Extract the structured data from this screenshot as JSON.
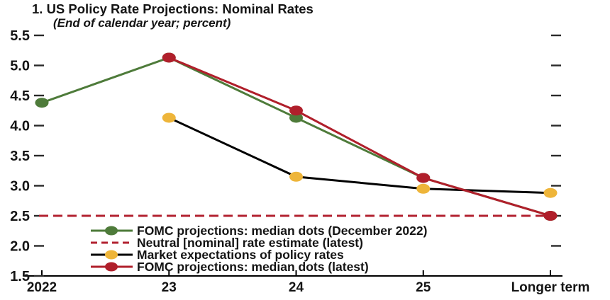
{
  "header": {
    "title": "1. US Policy Rate Projections: Nominal Rates",
    "subtitle": "(End of calendar year; percent)"
  },
  "chart_data": {
    "type": "line",
    "title": "1. US Policy Rate Projections: Nominal Rates",
    "subtitle": "(End of calendar year; percent)",
    "categories": [
      "2022",
      "23",
      "24",
      "25",
      "Longer term"
    ],
    "ylim": [
      1.5,
      5.5
    ],
    "yticks": [
      5.5,
      5.0,
      4.5,
      4.0,
      3.5,
      3.0,
      2.5,
      2.0,
      1.5
    ],
    "grid": false,
    "legend_position": "inside-bottom-left",
    "colors": {
      "fomc_dec2022_green": "#4e7b3a",
      "neutral_rate_red": "#b22230",
      "market_line_black": "#000000",
      "market_dot_yellow": "#eeb53a",
      "fomc_latest_red": "#b01f2b",
      "axis_black": "#000000"
    },
    "series": [
      {
        "name": "FOMC projections: median dots (December 2022)",
        "style": "line-dot",
        "line_color": "#4e7b3a",
        "dot_color": "#4e7b3a",
        "values": [
          4.38,
          5.13,
          4.13,
          3.13,
          2.5
        ]
      },
      {
        "name": "Neutral [nominal] rate estimate (latest)",
        "style": "dashed",
        "line_color": "#b22230",
        "values": [
          2.5,
          2.5,
          2.5,
          2.5,
          2.5
        ]
      },
      {
        "name": "Market expectations of policy rates",
        "style": "line-dot",
        "line_color": "#000000",
        "dot_color": "#eeb53a",
        "values": [
          null,
          4.13,
          3.15,
          2.95,
          2.88
        ]
      },
      {
        "name": "FOMC projections: median dots (latest)",
        "style": "line-dot",
        "line_color": "#b01f2b",
        "dot_color": "#b01f2b",
        "values": [
          null,
          5.13,
          4.25,
          3.13,
          2.5
        ]
      }
    ]
  }
}
